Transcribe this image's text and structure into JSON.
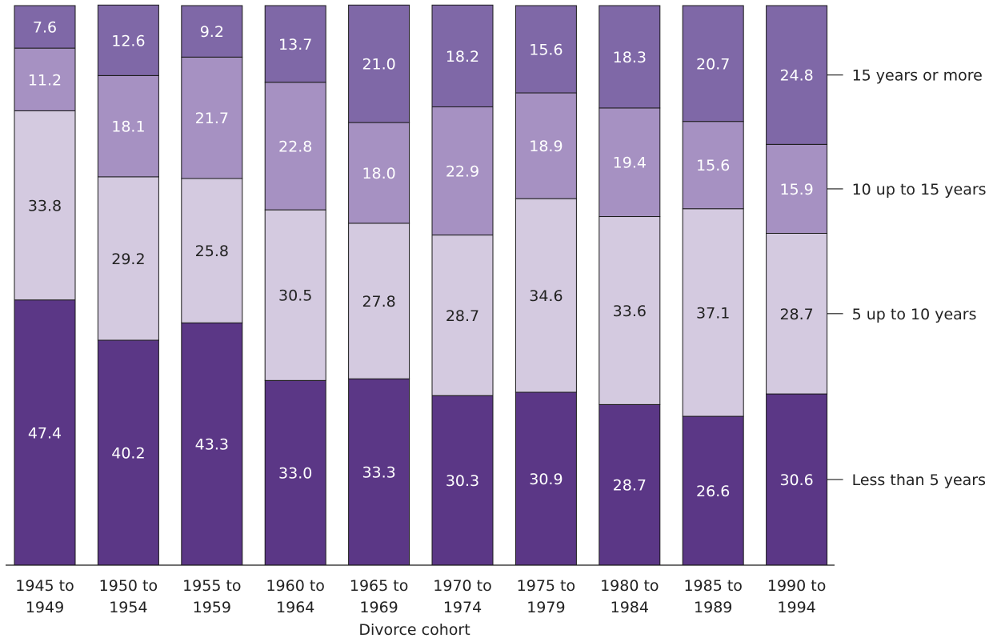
{
  "chart_data": {
    "type": "bar",
    "stacked": true,
    "orientation": "vertical",
    "xlabel": "Divorce cohort",
    "ylabel": "",
    "title": "",
    "ylim": [
      0,
      100
    ],
    "grid": false,
    "legend": "right",
    "categories": [
      [
        "1945 to",
        "1949"
      ],
      [
        "1950 to",
        "1954"
      ],
      [
        "1955 to",
        "1959"
      ],
      [
        "1960 to",
        "1964"
      ],
      [
        "1965 to",
        "1969"
      ],
      [
        "1970 to",
        "1974"
      ],
      [
        "1975 to",
        "1979"
      ],
      [
        "1980 to",
        "1984"
      ],
      [
        "1985 to",
        "1989"
      ],
      [
        "1990 to",
        "1994"
      ]
    ],
    "series": [
      {
        "name": "Less than 5 years",
        "color": "#5b3786",
        "label_color": "#ffffff",
        "values": [
          47.4,
          40.2,
          43.3,
          33.0,
          33.3,
          30.3,
          30.9,
          28.7,
          26.6,
          30.6
        ],
        "labels": [
          "47.4",
          "40.2",
          "43.3",
          "33.0",
          "33.3",
          "30.3",
          "30.9",
          "28.7",
          "26.6",
          "30.6"
        ]
      },
      {
        "name": "5 up to 10 years",
        "color": "#d4cae0",
        "label_color": "#222222",
        "values": [
          33.8,
          29.2,
          25.8,
          30.5,
          27.8,
          28.7,
          34.6,
          33.6,
          37.1,
          28.7
        ],
        "labels": [
          "33.8",
          "29.2",
          "25.8",
          "30.5",
          "27.8",
          "28.7",
          "34.6",
          "33.6",
          "37.1",
          "28.7"
        ]
      },
      {
        "name": "10 up to 15 years",
        "color": "#a691c2",
        "label_color": "#ffffff",
        "values": [
          11.2,
          18.1,
          21.7,
          22.8,
          18.0,
          22.9,
          18.9,
          19.4,
          15.6,
          15.9
        ],
        "labels": [
          "11.2",
          "18.1",
          "21.7",
          "22.8",
          "18.0",
          "22.9",
          "18.9",
          "19.4",
          "15.6",
          "15.9"
        ]
      },
      {
        "name": "15 years or more",
        "color": "#7f68a7",
        "label_color": "#ffffff",
        "values": [
          7.6,
          12.6,
          9.2,
          13.7,
          21.0,
          18.2,
          15.6,
          18.3,
          20.7,
          24.8
        ],
        "labels": [
          "7.6",
          "12.6",
          "9.2",
          "13.7",
          "21.0",
          "18.2",
          "15.6",
          "18.3",
          "20.7",
          "24.8"
        ]
      }
    ]
  }
}
